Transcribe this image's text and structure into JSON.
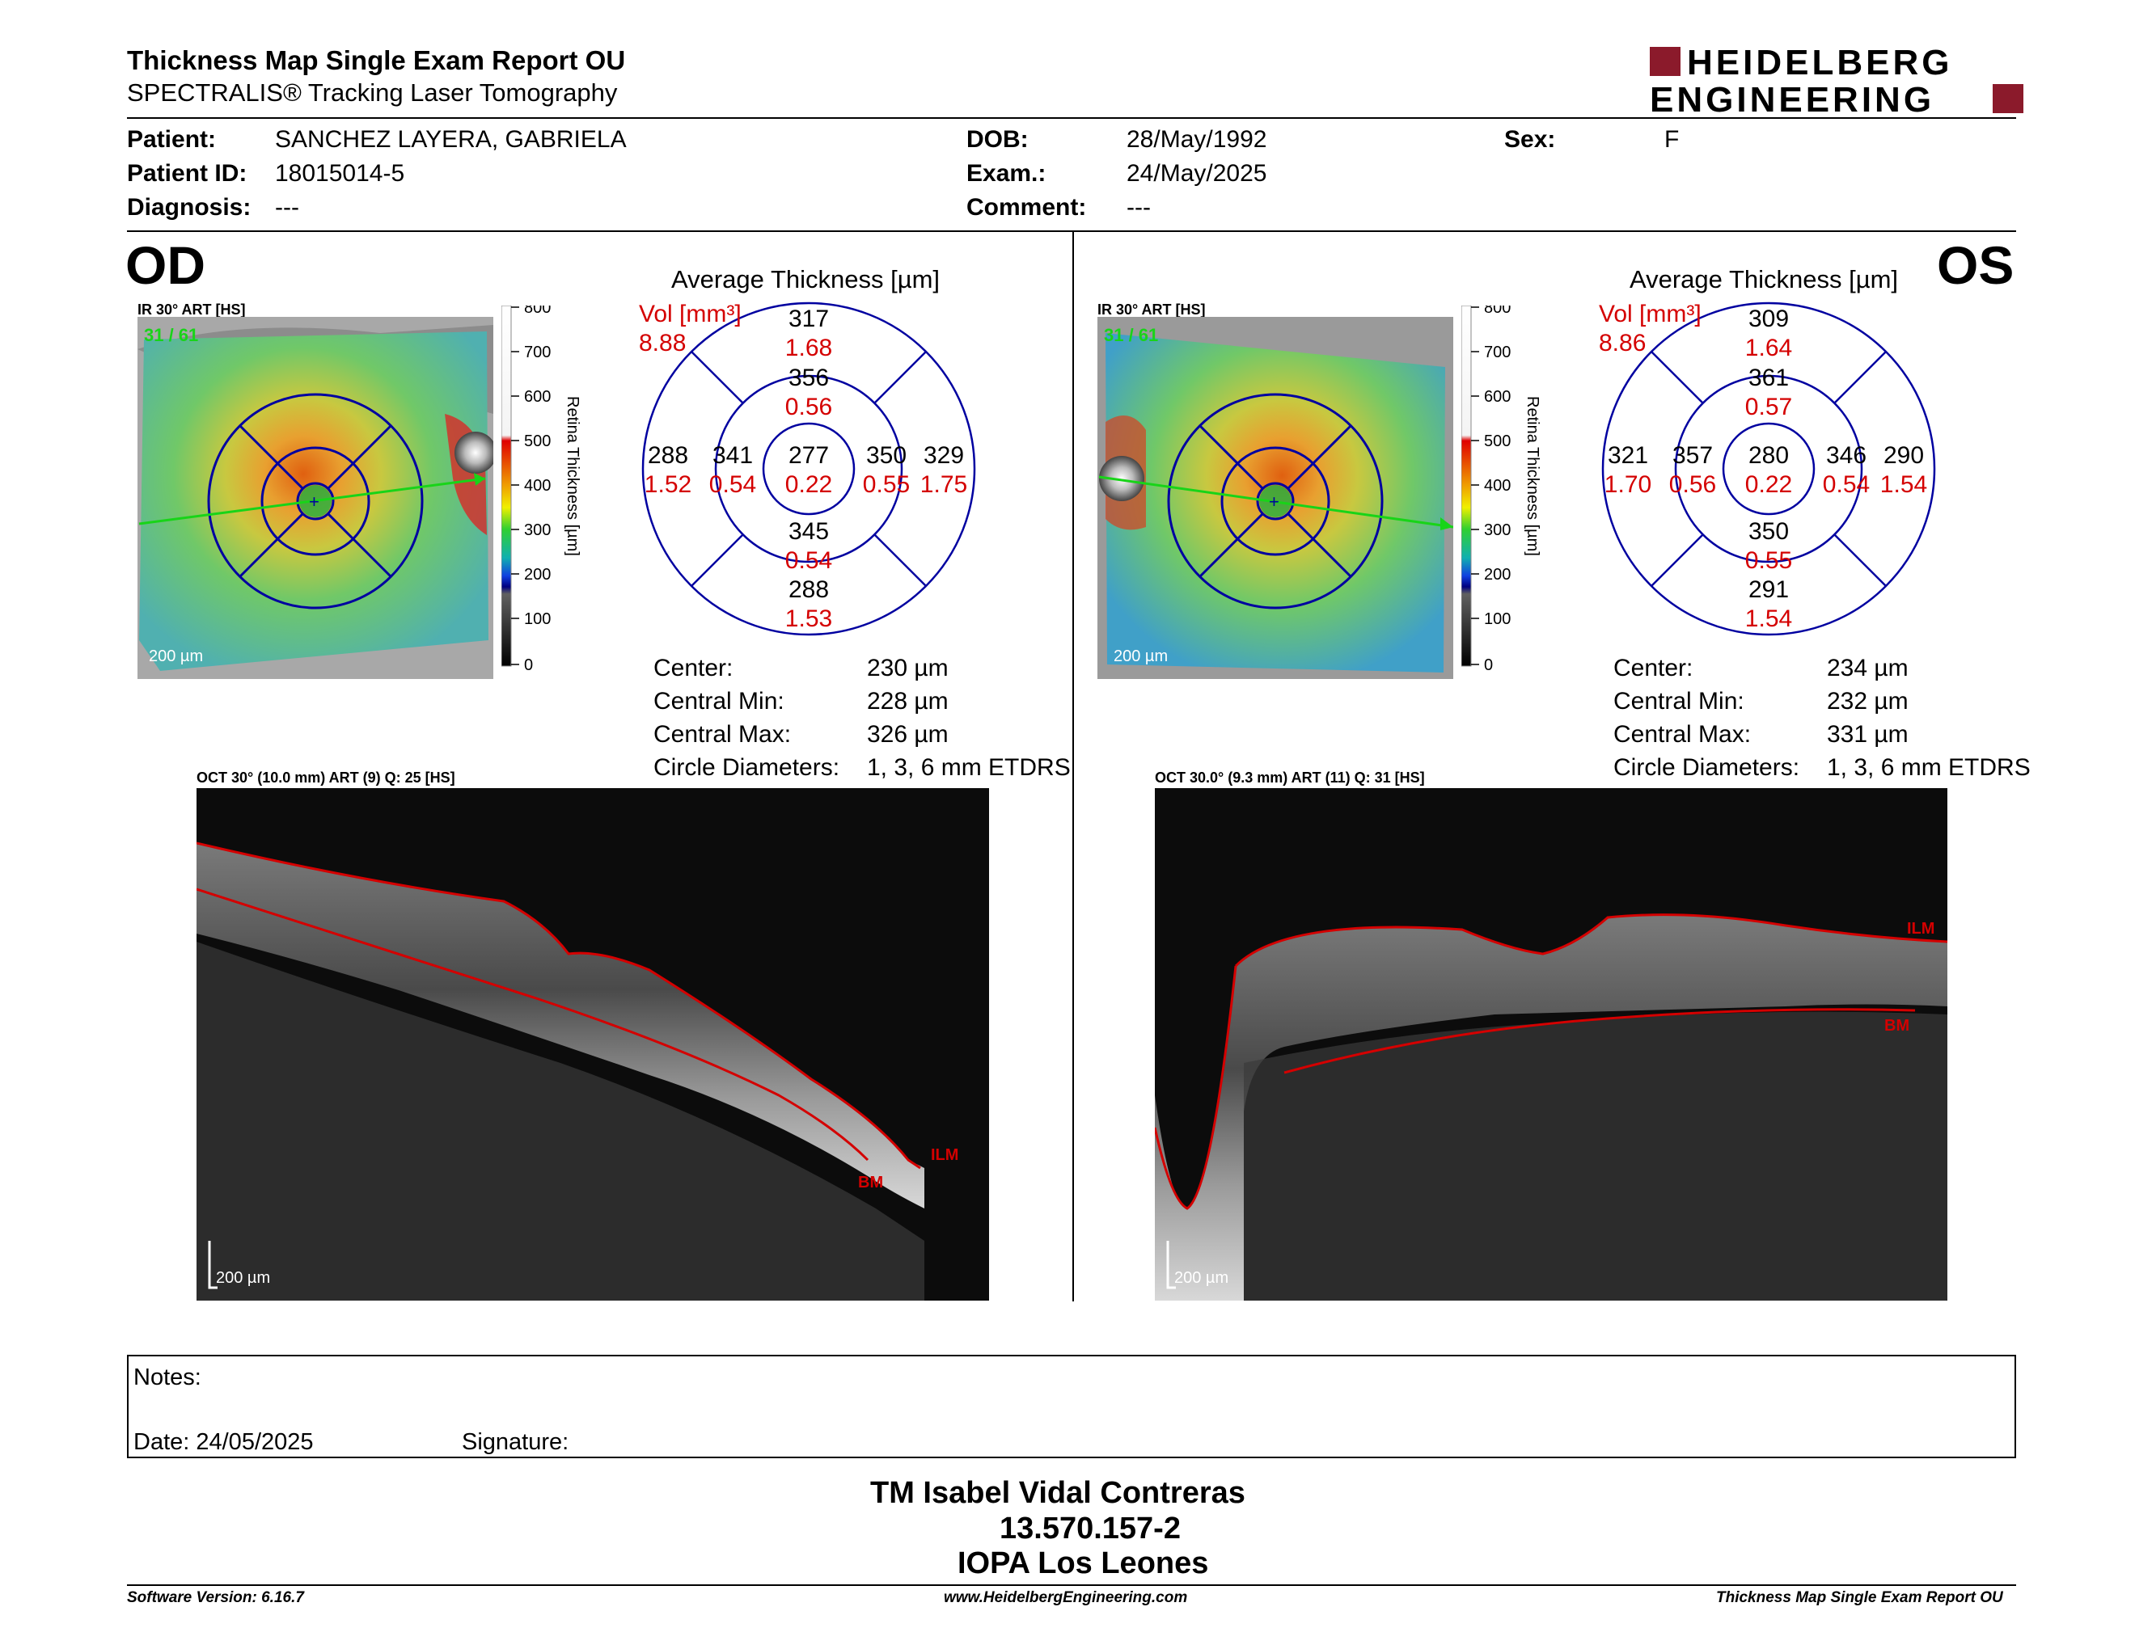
{
  "report": {
    "title": "Thickness Map Single Exam Report OU",
    "subtitle": "SPECTRALIS® Tracking Laser Tomography",
    "logo_line1": "HEIDELBERG",
    "logo_line2": "ENGINEERING"
  },
  "patient": {
    "patient_label": "Patient:",
    "patient_value": "SANCHEZ LAYERA, GABRIELA",
    "id_label": "Patient ID:",
    "id_value": "18015014-5",
    "diagnosis_label": "Diagnosis:",
    "diagnosis_value": "---",
    "dob_label": "DOB:",
    "dob_value": "28/May/1992",
    "exam_label": "Exam.:",
    "exam_value": "24/May/2025",
    "comment_label": "Comment:",
    "comment_value": "---",
    "sex_label": "Sex:",
    "sex_value": "F"
  },
  "od": {
    "eye": "OD",
    "ir_label": "IR 30° ART [HS]",
    "frame_count": "31 / 61",
    "scale": "200 µm",
    "colorbar_ticks": [
      "800",
      "700",
      "600",
      "500",
      "400",
      "300",
      "200",
      "100",
      "0"
    ],
    "colorbar_title": "Retina  Thickness [µm]",
    "avg_title": "Average Thickness [µm]",
    "vol_label": "Vol [mm³]",
    "vol_total": "8.88",
    "sectors": {
      "center": {
        "t": "277",
        "v": "0.22"
      },
      "inner_sup": {
        "t": "356",
        "v": "0.56"
      },
      "inner_inf": {
        "t": "345",
        "v": "0.54"
      },
      "inner_left": {
        "t": "341",
        "v": "0.54"
      },
      "inner_right": {
        "t": "350",
        "v": "0.55"
      },
      "outer_sup": {
        "t": "317",
        "v": "1.68"
      },
      "outer_inf": {
        "t": "288",
        "v": "1.53"
      },
      "outer_left": {
        "t": "288",
        "v": "1.52"
      },
      "outer_right": {
        "t": "329",
        "v": "1.75"
      }
    },
    "stats": [
      {
        "label": "Center:",
        "value": "230 µm"
      },
      {
        "label": "Central Min:",
        "value": "228 µm"
      },
      {
        "label": "Central Max:",
        "value": "326 µm"
      },
      {
        "label": "Circle Diameters:",
        "value": "1, 3, 6 mm ETDRS"
      }
    ],
    "oct_label": "OCT 30° (10.0 mm) ART (9) Q: 25 [HS]",
    "oct_scale": "200 µm",
    "ilm": "ILM",
    "bm": "BM"
  },
  "os": {
    "eye": "OS",
    "ir_label": "IR 30° ART [HS]",
    "frame_count": "31 / 61",
    "scale": "200 µm",
    "colorbar_ticks": [
      "800",
      "700",
      "600",
      "500",
      "400",
      "300",
      "200",
      "100",
      "0"
    ],
    "colorbar_title": "Retina  Thickness [µm]",
    "avg_title": "Average Thickness [µm]",
    "vol_label": "Vol [mm³]",
    "vol_total": "8.86",
    "sectors": {
      "center": {
        "t": "280",
        "v": "0.22"
      },
      "inner_sup": {
        "t": "361",
        "v": "0.57"
      },
      "inner_inf": {
        "t": "350",
        "v": "0.55"
      },
      "inner_left": {
        "t": "357",
        "v": "0.56"
      },
      "inner_right": {
        "t": "346",
        "v": "0.54"
      },
      "outer_sup": {
        "t": "309",
        "v": "1.64"
      },
      "outer_inf": {
        "t": "291",
        "v": "1.54"
      },
      "outer_left": {
        "t": "321",
        "v": "1.70"
      },
      "outer_right": {
        "t": "290",
        "v": "1.54"
      }
    },
    "stats": [
      {
        "label": "Center:",
        "value": "234 µm"
      },
      {
        "label": "Central Min:",
        "value": "232 µm"
      },
      {
        "label": "Central Max:",
        "value": "331 µm"
      },
      {
        "label": "Circle Diameters:",
        "value": "1, 3, 6 mm ETDRS"
      }
    ],
    "oct_label": "OCT 30.0° (9.3 mm) ART (11) Q: 31 [HS]",
    "oct_scale": "200 µm",
    "ilm": "ILM",
    "bm": "BM"
  },
  "notes": {
    "notes_label": "Notes:",
    "date": "Date: 24/05/2025",
    "signature": "Signature:"
  },
  "signer": {
    "name": "TM Isabel Vidal Contreras",
    "id": "13.570.157-2",
    "institution": "IOPA Los Leones"
  },
  "footer": {
    "software": "Software Version: 6.16.7",
    "website": "www.HeidelbergEngineering.com",
    "report_name": "Thickness Map Single Exam Report OU"
  },
  "colors": {
    "red": "#d40000",
    "blue": "#0000a0",
    "green": "#18d418",
    "logo_red": "#8b1a2b"
  }
}
